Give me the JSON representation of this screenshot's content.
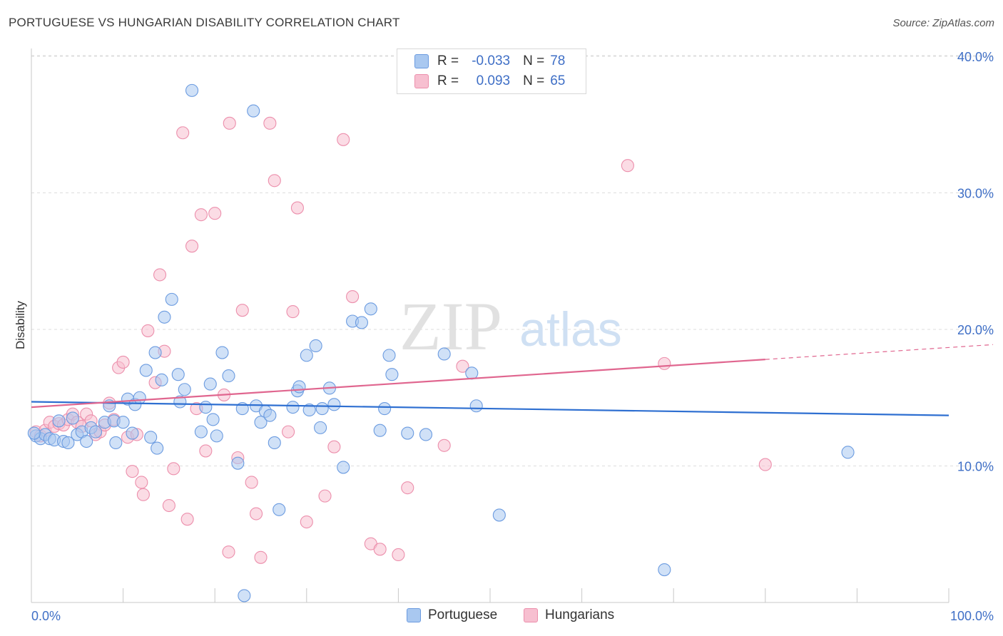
{
  "title": "PORTUGUESE VS HUNGARIAN DISABILITY CORRELATION CHART",
  "source": "Source: ZipAtlas.com",
  "watermark": {
    "zip": "ZIP",
    "atlas": "atlas"
  },
  "legend": {
    "rows": [
      {
        "r_label": "R =",
        "r_value": "-0.033",
        "n_label": "N =",
        "n_value": "78"
      },
      {
        "r_label": "R =",
        "r_value": "0.093",
        "n_label": "N =",
        "n_value": "65"
      }
    ]
  },
  "bottom_legend": [
    "Portuguese",
    "Hungarians"
  ],
  "colors": {
    "blue_fill": "#a9c8f0",
    "blue_stroke": "#6b9be0",
    "blue_line": "#2e6fd1",
    "pink_fill": "#f7bfd0",
    "pink_stroke": "#ec8fac",
    "pink_line": "#e0668f",
    "tick_label": "#3f6fc6",
    "grid": "#dddddd"
  },
  "chart_data": {
    "type": "scatter",
    "title": "PORTUGUESE VS HUNGARIAN DISABILITY CORRELATION CHART",
    "xlabel": "",
    "ylabel": "Disability",
    "xlim": [
      0,
      100
    ],
    "ylim": [
      0,
      42
    ],
    "x_tick_labels": [
      "0.0%",
      "100.0%"
    ],
    "y_ticks": [
      10,
      20,
      30,
      40
    ],
    "y_tick_labels": [
      "10.0%",
      "20.0%",
      "30.0%",
      "40.0%"
    ],
    "grid": "horizontal dashed",
    "series": [
      {
        "name": "Portuguese",
        "r": -0.033,
        "n": 78,
        "trend": {
          "x": [
            0,
            100
          ],
          "y": [
            14.7,
            13.7
          ]
        },
        "points": [
          [
            0.5,
            12.2
          ],
          [
            1,
            12
          ],
          [
            1.5,
            12.3
          ],
          [
            2,
            12
          ],
          [
            2.5,
            11.9
          ],
          [
            3,
            13.3
          ],
          [
            3.5,
            11.8
          ],
          [
            4,
            11.7
          ],
          [
            4.5,
            13.5
          ],
          [
            5,
            12.3
          ],
          [
            5.5,
            12.5
          ],
          [
            6,
            11.8
          ],
          [
            6.5,
            12.8
          ],
          [
            7,
            12.5
          ],
          [
            8,
            13.2
          ],
          [
            8.5,
            14.4
          ],
          [
            9,
            13.3
          ],
          [
            9.2,
            11.7
          ],
          [
            10,
            13.2
          ],
          [
            10.5,
            14.9
          ],
          [
            11,
            12.4
          ],
          [
            11.3,
            14.5
          ],
          [
            11.8,
            15
          ],
          [
            12.5,
            17
          ],
          [
            13,
            12.1
          ],
          [
            13.5,
            18.3
          ],
          [
            13.7,
            11.3
          ],
          [
            14.2,
            16.3
          ],
          [
            14.5,
            20.9
          ],
          [
            15.3,
            22.2
          ],
          [
            16,
            16.7
          ],
          [
            16.2,
            14.7
          ],
          [
            16.7,
            15.6
          ],
          [
            17.5,
            37.5
          ],
          [
            18.5,
            12.5
          ],
          [
            19,
            14.3
          ],
          [
            19.5,
            16
          ],
          [
            19.8,
            13.4
          ],
          [
            20.2,
            12.2
          ],
          [
            20.8,
            18.3
          ],
          [
            21.5,
            16.6
          ],
          [
            22.5,
            10.2
          ],
          [
            23,
            14.2
          ],
          [
            23.2,
            0.5
          ],
          [
            24.2,
            36
          ],
          [
            24.5,
            14.4
          ],
          [
            25,
            13.2
          ],
          [
            25.5,
            14
          ],
          [
            26,
            13.7
          ],
          [
            26.5,
            11.7
          ],
          [
            27,
            6.8
          ],
          [
            28.5,
            14.3
          ],
          [
            29,
            15.5
          ],
          [
            29.2,
            15.8
          ],
          [
            30,
            18.1
          ],
          [
            30.3,
            14.1
          ],
          [
            31,
            18.8
          ],
          [
            31.5,
            12.8
          ],
          [
            31.7,
            14.2
          ],
          [
            32.5,
            15.7
          ],
          [
            33,
            14.5
          ],
          [
            34,
            9.9
          ],
          [
            35,
            20.6
          ],
          [
            36,
            20.5
          ],
          [
            37,
            21.5
          ],
          [
            38,
            12.6
          ],
          [
            38.5,
            14.2
          ],
          [
            39,
            18.1
          ],
          [
            39.3,
            16.7
          ],
          [
            41,
            12.4
          ],
          [
            43,
            12.3
          ],
          [
            45,
            18.2
          ],
          [
            48,
            16.8
          ],
          [
            48.5,
            14.4
          ],
          [
            51,
            6.4
          ],
          [
            69,
            2.4
          ],
          [
            89,
            11
          ],
          [
            0.3,
            12.4
          ]
        ]
      },
      {
        "name": "Hungarians",
        "r": 0.093,
        "n": 65,
        "trend": {
          "x": [
            0,
            80
          ],
          "y": [
            14.3,
            17.8
          ]
        },
        "points": [
          [
            0.5,
            12.5
          ],
          [
            1,
            12.2
          ],
          [
            1.5,
            12.6
          ],
          [
            2,
            13.2
          ],
          [
            2.5,
            12.9
          ],
          [
            3,
            13.1
          ],
          [
            3.5,
            13
          ],
          [
            4,
            13.4
          ],
          [
            4.5,
            13.8
          ],
          [
            5,
            13.2
          ],
          [
            5.5,
            12.9
          ],
          [
            6,
            13.8
          ],
          [
            6.5,
            13.3
          ],
          [
            7,
            12.3
          ],
          [
            7.5,
            12.5
          ],
          [
            8,
            13
          ],
          [
            8.5,
            14.6
          ],
          [
            9,
            13.4
          ],
          [
            9.5,
            17.2
          ],
          [
            10,
            17.6
          ],
          [
            10.5,
            12.1
          ],
          [
            11,
            9.6
          ],
          [
            11.5,
            12.3
          ],
          [
            12,
            8.8
          ],
          [
            12.2,
            7.9
          ],
          [
            12.7,
            19.9
          ],
          [
            13.5,
            16.1
          ],
          [
            14,
            24
          ],
          [
            14.5,
            18.4
          ],
          [
            15,
            7.1
          ],
          [
            15.5,
            9.8
          ],
          [
            16.5,
            34.4
          ],
          [
            17,
            6.1
          ],
          [
            17.5,
            26.1
          ],
          [
            18,
            14.2
          ],
          [
            18.5,
            28.4
          ],
          [
            19,
            11.1
          ],
          [
            20,
            28.5
          ],
          [
            21,
            15.2
          ],
          [
            21.5,
            3.7
          ],
          [
            21.6,
            35.1
          ],
          [
            22.5,
            10.6
          ],
          [
            23,
            21.4
          ],
          [
            24,
            8.8
          ],
          [
            24.5,
            6.5
          ],
          [
            25,
            3.3
          ],
          [
            26,
            35.1
          ],
          [
            26.5,
            30.9
          ],
          [
            28,
            12.5
          ],
          [
            28.5,
            21.3
          ],
          [
            29,
            28.9
          ],
          [
            30,
            5.9
          ],
          [
            32,
            7.8
          ],
          [
            33,
            11.4
          ],
          [
            34,
            33.9
          ],
          [
            35,
            22.4
          ],
          [
            37,
            4.3
          ],
          [
            38,
            3.9
          ],
          [
            40,
            3.5
          ],
          [
            41,
            8.4
          ],
          [
            45,
            11.5
          ],
          [
            47,
            17.3
          ],
          [
            65,
            32
          ],
          [
            69,
            17.5
          ],
          [
            80,
            10.1
          ]
        ]
      }
    ]
  }
}
